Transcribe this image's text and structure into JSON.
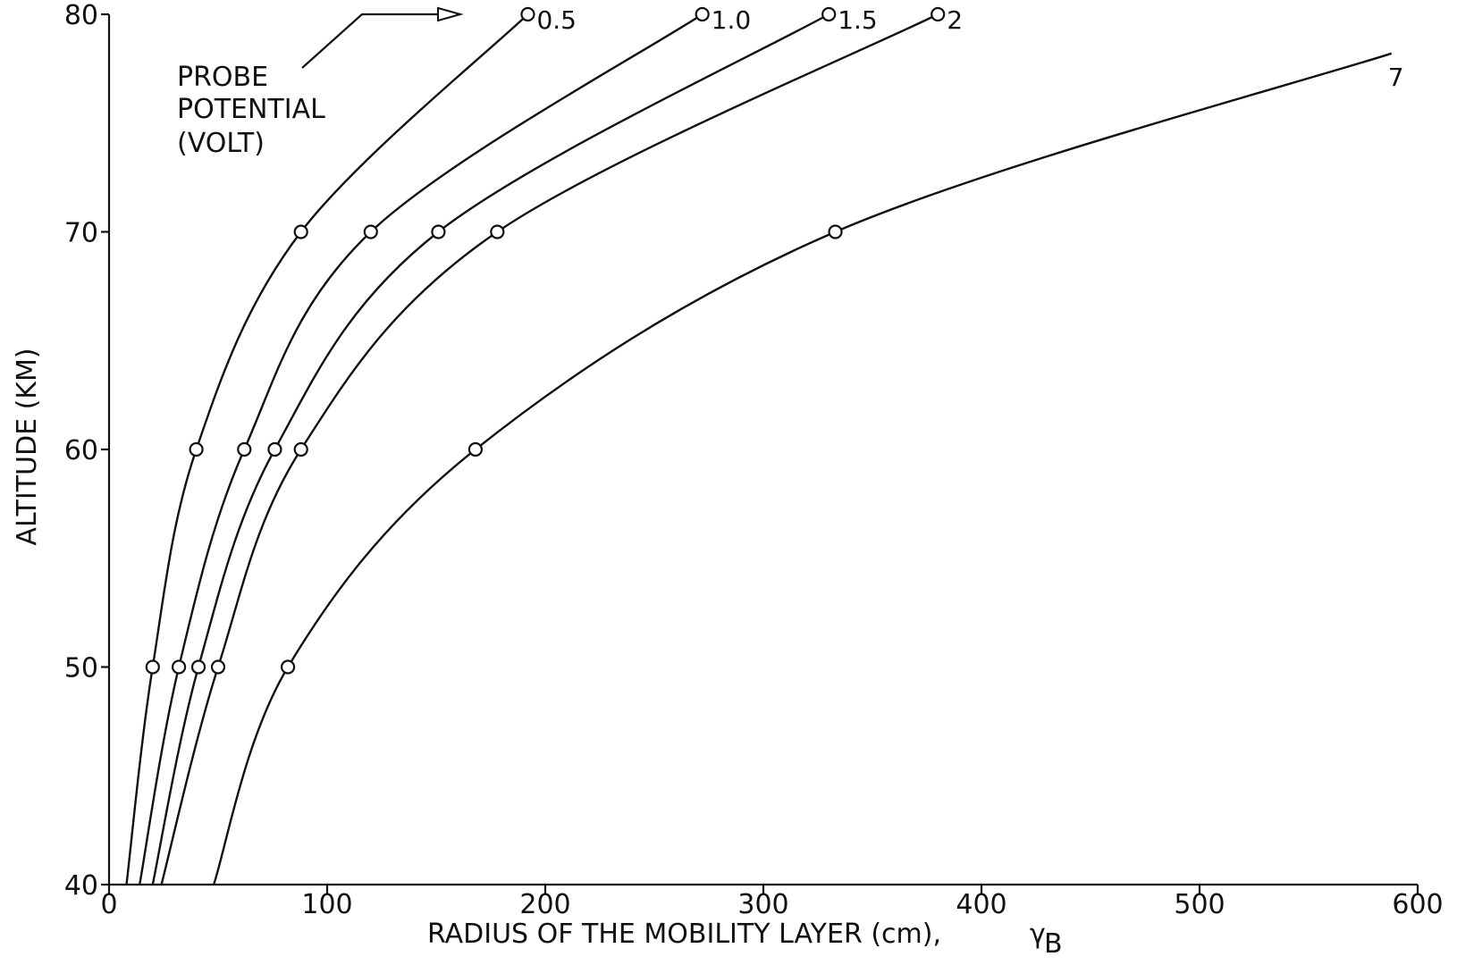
{
  "chart_data": {
    "type": "line",
    "title": "",
    "xlabel": "RADIUS OF THE MOBILITY LAYER (cm),",
    "xlabel_symbol": "γ",
    "xlabel_subscript": "B",
    "ylabel": "ALTITUDE (KM)",
    "xlim": [
      0,
      600
    ],
    "ylim": [
      40,
      80
    ],
    "x_ticks": [
      "0",
      "100",
      "200",
      "300",
      "400",
      "500",
      "600"
    ],
    "y_ticks": [
      "40",
      "50",
      "60",
      "70",
      "80"
    ],
    "grid": false,
    "legend": {
      "title_lines": [
        "PROBE",
        "POTENTIAL",
        "(VOLT)"
      ],
      "placement": "top-left"
    },
    "series": [
      {
        "name": "0.5",
        "x": [
          8,
          20,
          40,
          88,
          192
        ],
        "y": [
          40,
          50,
          60,
          70,
          80
        ],
        "markers": [
          false,
          true,
          true,
          true,
          true
        ]
      },
      {
        "name": "1.0",
        "x": [
          14,
          32,
          62,
          120,
          272
        ],
        "y": [
          40,
          50,
          60,
          70,
          80
        ],
        "markers": [
          false,
          true,
          true,
          true,
          true
        ]
      },
      {
        "name": "1.5",
        "x": [
          20,
          41,
          76,
          151,
          330
        ],
        "y": [
          40,
          50,
          60,
          70,
          80
        ],
        "markers": [
          false,
          true,
          true,
          true,
          true
        ]
      },
      {
        "name": "2",
        "x": [
          24,
          50,
          88,
          178,
          380
        ],
        "y": [
          40,
          50,
          60,
          70,
          80
        ],
        "markers": [
          false,
          true,
          true,
          true,
          true
        ]
      },
      {
        "name": "7",
        "x": [
          48,
          82,
          168,
          333,
          588
        ],
        "y": [
          40,
          50,
          60,
          70,
          78.2
        ],
        "markers": [
          false,
          true,
          true,
          true,
          false
        ]
      }
    ]
  }
}
